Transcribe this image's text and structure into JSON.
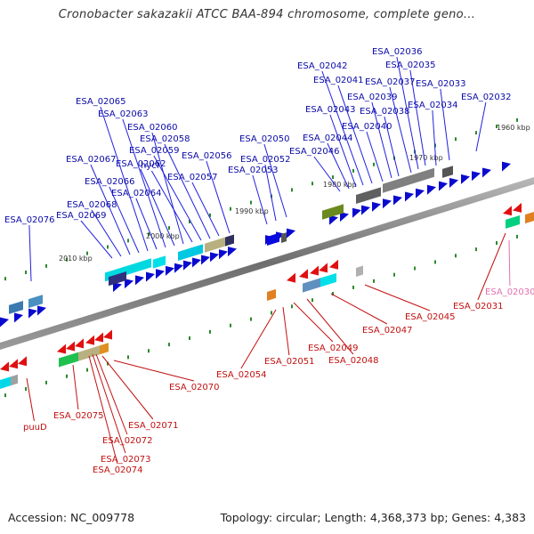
{
  "title": "Cronobacter sakazakii ATCC BAA-894 chromosome, complete geno...",
  "accession": "Accession: NC_009778",
  "summary": "Topology: circular; Length: 4,368,373 bp; Genes: 4,383",
  "colors": {
    "forward_gene": "#0a0acf",
    "reverse_gene": "#e01010",
    "forward_label": "#0a0aa8",
    "reverse_label": "#c21010",
    "pseudo_label": "#e070b0",
    "backbone": "#808080",
    "tick": "#2a8a2a"
  },
  "ruler": {
    "ticks": [
      {
        "kbp": 1960,
        "label": "1960 kbp"
      },
      {
        "kbp": 1970,
        "label": "1970 kbp"
      },
      {
        "kbp": 1980,
        "label": "1980 kbp"
      },
      {
        "kbp": 1990,
        "label": "1990 kbp"
      },
      {
        "kbp": 2000,
        "label": "2000 kbp"
      },
      {
        "kbp": 2010,
        "label": "2010 kbp"
      }
    ]
  },
  "forward_genes": [
    "ESA_02032",
    "ESA_02033",
    "ESA_02034",
    "ESA_02035",
    "ESA_02036",
    "ESA_02037",
    "ESA_02038",
    "ESA_02039",
    "ESA_02040",
    "ESA_02041",
    "ESA_02042",
    "ESA_02043",
    "ESA_02044",
    "ESA_02046",
    "ESA_02050",
    "ESA_02052",
    "ESA_02053",
    "ESA_02056",
    "ESA_02057",
    "ESA_02058",
    "ESA_02059",
    "hycI",
    "ESA_02060",
    "ESA_02062",
    "ESA_02063",
    "ESA_02064",
    "ESA_02065",
    "ESA_02066",
    "ESA_02067",
    "ESA_02068",
    "ESA_02069",
    "ESA_02076"
  ],
  "reverse_genes": [
    "ESA_02030",
    "ESA_02031",
    "ESA_02045",
    "ESA_02047",
    "ESA_02048",
    "ESA_02049",
    "ESA_02051",
    "ESA_02054",
    "ESA_02070",
    "ESA_02071",
    "ESA_02072",
    "ESA_02073",
    "ESA_02074",
    "ESA_02075",
    "puuD"
  ]
}
